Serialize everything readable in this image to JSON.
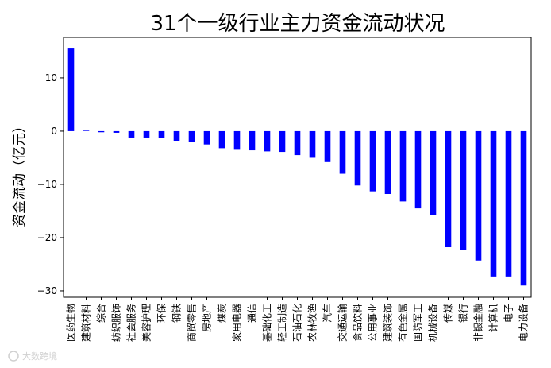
{
  "chart_data": {
    "type": "bar",
    "title": "31个一级行业主力资金流动状况",
    "xlabel": "",
    "ylabel": "资金流动（亿元）",
    "ylim": [
      -31.2,
      17.6
    ],
    "yticks": [
      10,
      0,
      -10,
      -20,
      -30
    ],
    "bar_color": "#0000ff",
    "grid": false,
    "categories": [
      "医药生物",
      "建筑材料",
      "综合",
      "纺织服饰",
      "社会服务",
      "美容护理",
      "环保",
      "钢铁",
      "商贸零售",
      "房地产",
      "煤炭",
      "家用电器",
      "通信",
      "基础化工",
      "轻工制造",
      "石油石化",
      "农林牧渔",
      "汽车",
      "交通运输",
      "食品饮料",
      "公用事业",
      "建筑装饰",
      "有色金属",
      "国防军工",
      "机械设备",
      "传媒",
      "银行",
      "非银金融",
      "计算机",
      "电子",
      "电力设备"
    ],
    "values": [
      15.5,
      0.1,
      -0.2,
      -0.3,
      -1.2,
      -1.2,
      -1.3,
      -1.8,
      -2.1,
      -2.5,
      -3.2,
      -3.5,
      -3.6,
      -3.8,
      -3.9,
      -4.5,
      -5.0,
      -5.8,
      -8.0,
      -10.2,
      -11.3,
      -11.8,
      -13.2,
      -14.5,
      -15.8,
      -21.8,
      -22.3,
      -24.3,
      -27.3,
      -27.3,
      -29.0
    ]
  },
  "watermark": "大数跨境"
}
